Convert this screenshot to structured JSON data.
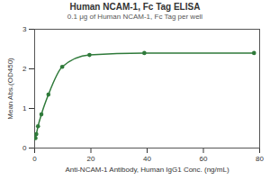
{
  "chart_data": {
    "type": "line",
    "title": "Human NCAM-1, Fc Tag ELISA",
    "subtitle": "0.1 μg of Human NCAM-1, Fc Tag per well",
    "x_label": "Anti-NCAM-1 Antibody, Human IgG1 Conc. (ng/mL)",
    "y_label": "Mean Abs.(OD450)",
    "x": [
      0.3,
      0.6,
      1.2,
      2.4,
      4.9,
      9.8,
      19.5,
      39,
      78
    ],
    "series": [
      {
        "name": "Anti-NCAM-1 Antibody, Human IgG1",
        "color": "#2f7a3a",
        "values": [
          0.25,
          0.35,
          0.55,
          0.85,
          1.35,
          2.05,
          2.35,
          2.4,
          2.4
        ],
        "marker": "circle",
        "line_style": "solid"
      }
    ],
    "xlim": [
      0,
      80
    ],
    "xticks": [
      0,
      20,
      40,
      60,
      80
    ],
    "ylim": [
      0,
      3
    ],
    "yticks": [
      0,
      1,
      2,
      3
    ],
    "grid": false
  }
}
